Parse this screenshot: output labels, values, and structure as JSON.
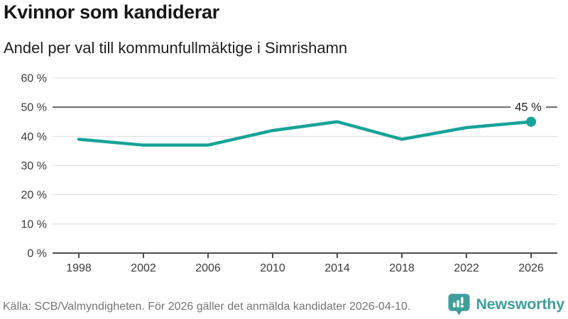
{
  "chart_data": {
    "type": "line",
    "title": "Kvinnor som kandiderar",
    "subtitle": "Andel per val till kommunfullmäktige i Simrishamn",
    "x": [
      1998,
      2002,
      2006,
      2010,
      2014,
      2018,
      2022,
      2026
    ],
    "values": [
      39,
      37,
      37,
      42,
      45,
      39,
      43,
      45
    ],
    "unit": "%",
    "xlabel": "",
    "ylabel": "",
    "ylim": [
      0,
      60
    ],
    "yticks": [
      {
        "value": 0,
        "label": "0 %"
      },
      {
        "value": 10,
        "label": "10 %"
      },
      {
        "value": 20,
        "label": "20 %"
      },
      {
        "value": 30,
        "label": "30 %"
      },
      {
        "value": 40,
        "label": "40 %"
      },
      {
        "value": 50,
        "label": "50 %"
      },
      {
        "value": 60,
        "label": "60 %"
      }
    ],
    "reference_line": 50,
    "annotation": {
      "x": 2026,
      "value": 45,
      "label": "45 %"
    },
    "line_color": "#17a398",
    "grid": true,
    "legend_position": "none"
  },
  "footer": {
    "source": "Källa: SCB/Valmyndigheten. För 2026 gäller det anmälda kandidater 2026-04-10.",
    "brand": "Newsworthy",
    "brand_color": "#3f9e9b"
  }
}
